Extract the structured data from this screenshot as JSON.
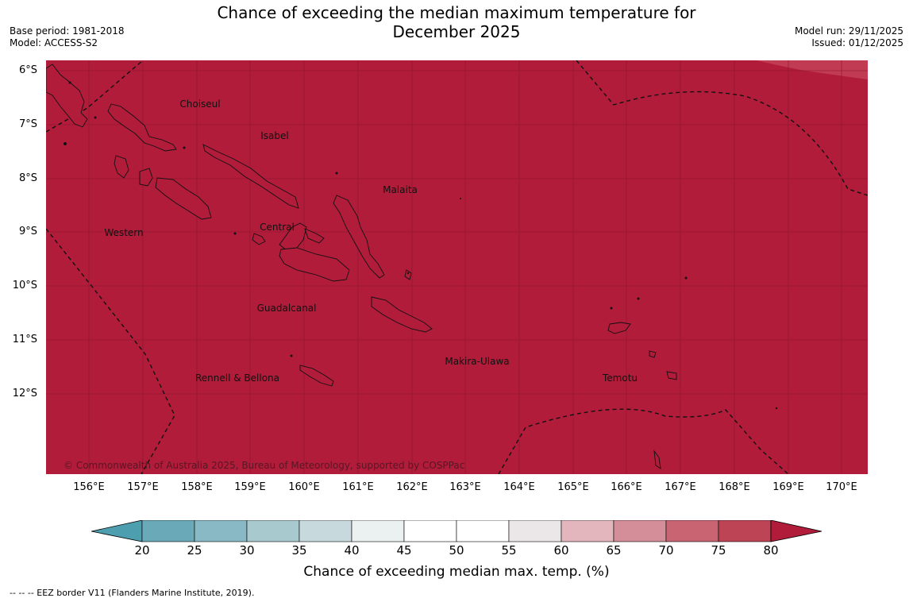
{
  "title": {
    "line1": "Chance of exceeding the median maximum temperature for",
    "line2": "December 2025"
  },
  "meta": {
    "base_period": "Base period: 1981-2018",
    "model": "Model: ACCESS-S2",
    "model_run": "Model run: 29/11/2025",
    "issued": "Issued: 01/12/2025"
  },
  "map": {
    "fill_color": "#b01c3a",
    "corner_color": "#c33f55",
    "lat_labels": [
      "6°S",
      "7°S",
      "8°S",
      "9°S",
      "10°S",
      "11°S",
      "12°S"
    ],
    "lon_labels": [
      "156°E",
      "157°E",
      "158°E",
      "159°E",
      "160°E",
      "161°E",
      "162°E",
      "163°E",
      "164°E",
      "165°E",
      "166°E",
      "167°E",
      "168°E",
      "169°E",
      "170°E"
    ],
    "regions": {
      "choiseul": "Choiseul",
      "isabel": "Isabel",
      "malaita": "Malaita",
      "western": "Western",
      "central": "Central",
      "guadalcanal": "Guadalcanal",
      "makira_ulawa": "Makira-Ulawa",
      "rennell_bellona": "Rennell & Bellona",
      "temotu": "Temotu"
    },
    "copyright": "© Commonwealth of Australia 2025, Bureau of Meteorology, supported by COSPPac"
  },
  "colorbar": {
    "ticks": [
      "20",
      "25",
      "30",
      "35",
      "40",
      "45",
      "50",
      "55",
      "60",
      "65",
      "70",
      "75",
      "80"
    ],
    "colors": [
      "#6aa9b8",
      "#8ab9c6",
      "#a8c9ce",
      "#c8d9dd",
      "#ebf0f1",
      "#ffffff",
      "#ffffff",
      "#ebe7e8",
      "#e3b6be",
      "#d48e99",
      "#c96573",
      "#bd4455"
    ],
    "under_color": "#4d9eae",
    "over_color": "#b01c3a",
    "label": "Chance of exceeding median max. temp. (%)"
  },
  "footnote": "--  --  -- EEZ border V11 (Flanders Marine Institute, 2019)."
}
